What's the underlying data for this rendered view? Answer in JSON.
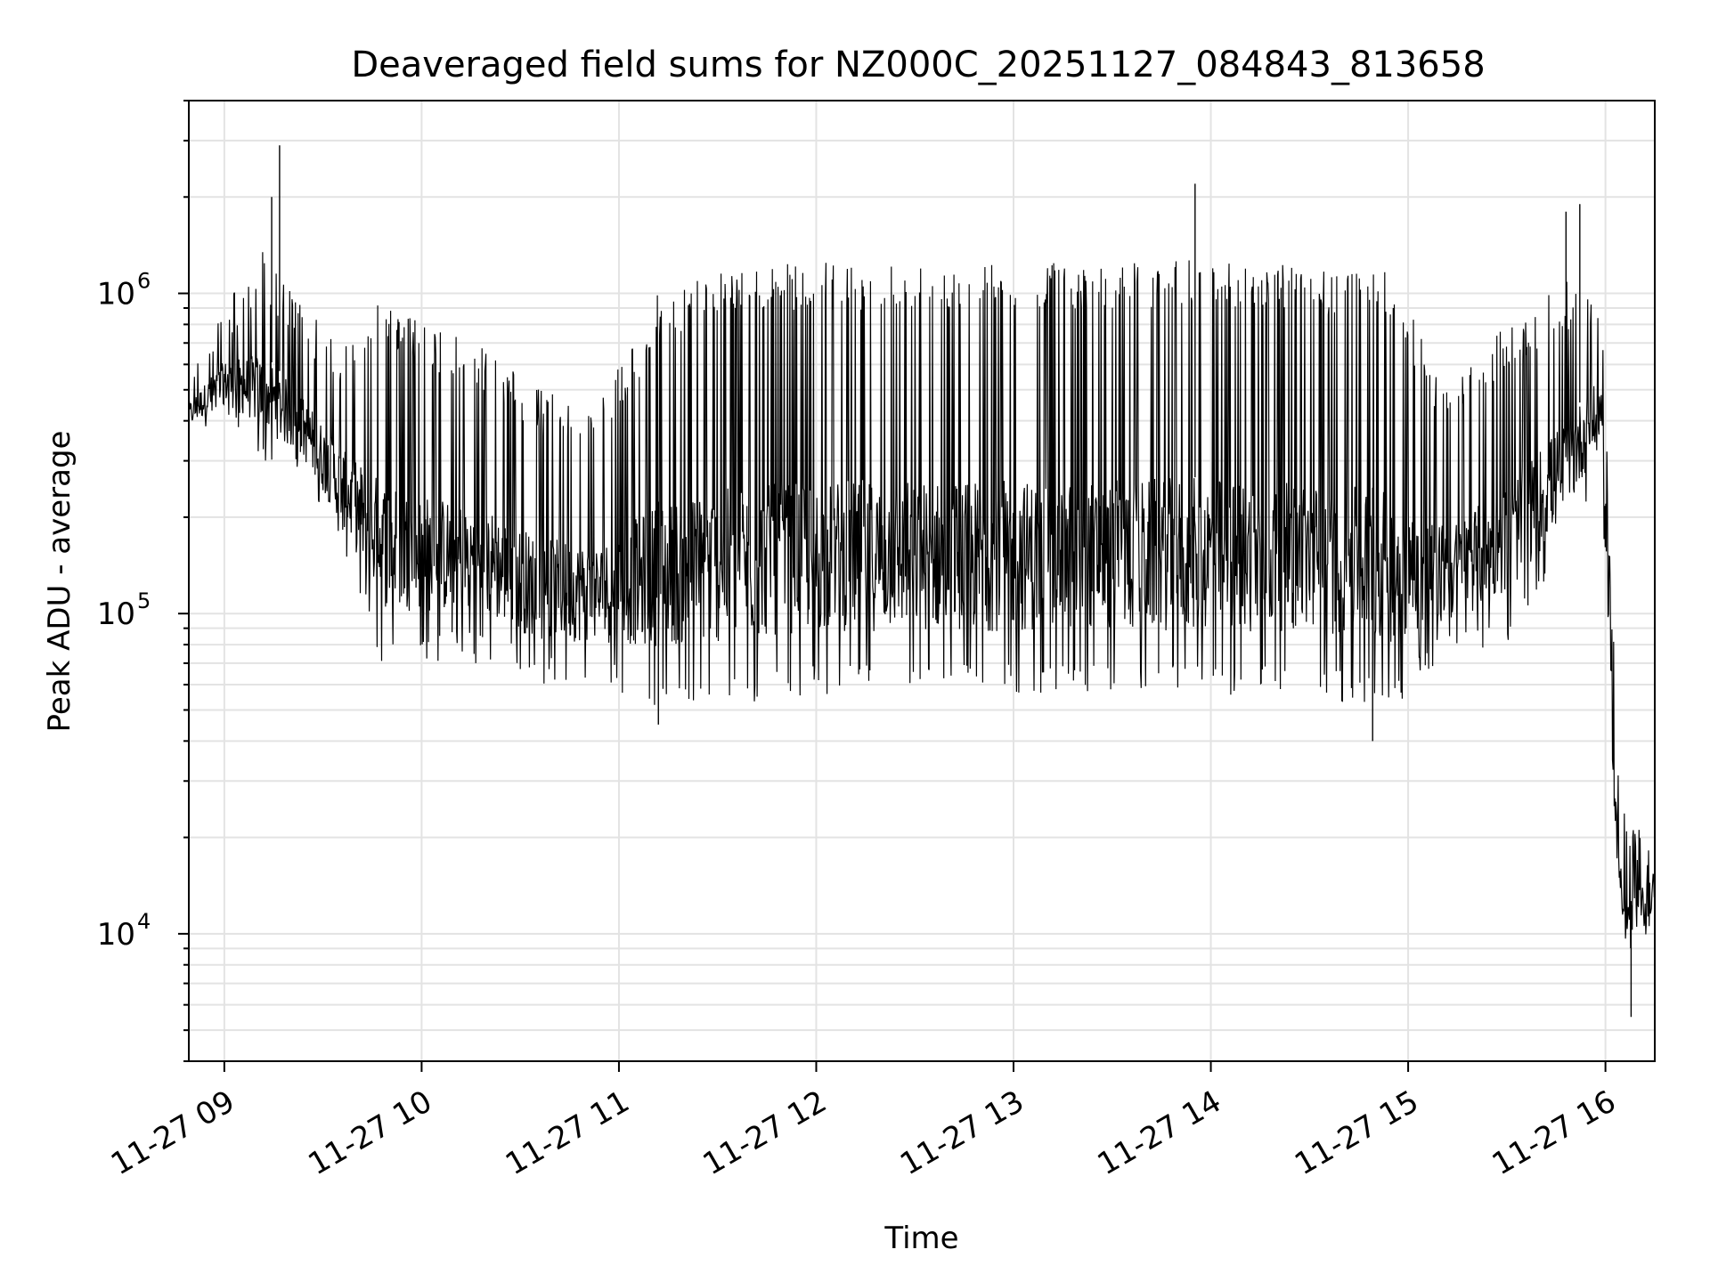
{
  "chart_data": {
    "type": "line",
    "title": "Deaveraged field sums for NZ000C_20251127_084843_813658",
    "xlabel": "Time",
    "ylabel": "Peak ADU - average",
    "yscale": "log",
    "ylim": [
      4000,
      4000000
    ],
    "xlim_hours": [
      8.82,
      16.25
    ],
    "grid": true,
    "x_tick_hours": [
      9,
      10,
      11,
      12,
      13,
      14,
      15,
      16
    ],
    "x_tick_labels": [
      "11-27 09",
      "11-27 10",
      "11-27 11",
      "11-27 12",
      "11-27 13",
      "11-27 14",
      "11-27 15",
      "11-27 16"
    ],
    "y_tick_values": [
      10000,
      100000,
      1000000
    ],
    "y_tick_base": "10",
    "y_tick_exponents": [
      "4",
      "5",
      "6"
    ],
    "line_color": "#000000",
    "series": [
      {
        "name": "field sums",
        "envelope": [
          {
            "t": 8.82,
            "lo": 350000,
            "hi": 600000
          },
          {
            "t": 9.0,
            "lo": 400000,
            "hi": 950000
          },
          {
            "t": 9.2,
            "lo": 300000,
            "hi": 1400000
          },
          {
            "t": 9.4,
            "lo": 250000,
            "hi": 900000
          },
          {
            "t": 9.6,
            "lo": 150000,
            "hi": 700000
          },
          {
            "t": 9.8,
            "lo": 70000,
            "hi": 1000000
          },
          {
            "t": 10.0,
            "lo": 70000,
            "hi": 800000
          },
          {
            "t": 10.3,
            "lo": 70000,
            "hi": 700000
          },
          {
            "t": 10.6,
            "lo": 60000,
            "hi": 500000
          },
          {
            "t": 10.9,
            "lo": 60000,
            "hi": 450000
          },
          {
            "t": 11.2,
            "lo": 50000,
            "hi": 1000000
          },
          {
            "t": 11.5,
            "lo": 50000,
            "hi": 1200000
          },
          {
            "t": 12.0,
            "lo": 55000,
            "hi": 1250000
          },
          {
            "t": 12.5,
            "lo": 55000,
            "hi": 1250000
          },
          {
            "t": 13.0,
            "lo": 55000,
            "hi": 1250000
          },
          {
            "t": 13.5,
            "lo": 55000,
            "hi": 1250000
          },
          {
            "t": 14.0,
            "lo": 55000,
            "hi": 1300000
          },
          {
            "t": 14.5,
            "lo": 55000,
            "hi": 1200000
          },
          {
            "t": 14.9,
            "lo": 50000,
            "hi": 1200000
          },
          {
            "t": 15.2,
            "lo": 70000,
            "hi": 500000
          },
          {
            "t": 15.5,
            "lo": 80000,
            "hi": 800000
          },
          {
            "t": 15.8,
            "lo": 150000,
            "hi": 1100000
          },
          {
            "t": 15.98,
            "lo": 300000,
            "hi": 1000000
          },
          {
            "t": 16.02,
            "lo": 50000,
            "hi": 200000
          },
          {
            "t": 16.06,
            "lo": 12000,
            "hi": 40000
          },
          {
            "t": 16.12,
            "lo": 7000,
            "hi": 22000
          },
          {
            "t": 16.25,
            "lo": 11000,
            "hi": 23000
          }
        ],
        "peaks": [
          {
            "t": 9.28,
            "y": 2900000
          },
          {
            "t": 9.24,
            "y": 2000000
          },
          {
            "t": 13.92,
            "y": 2200000
          },
          {
            "t": 15.87,
            "y": 1900000
          },
          {
            "t": 15.8,
            "y": 1800000
          },
          {
            "t": 11.2,
            "y": 45000
          },
          {
            "t": 14.82,
            "y": 40000
          },
          {
            "t": 16.13,
            "y": 5500
          }
        ]
      }
    ]
  }
}
